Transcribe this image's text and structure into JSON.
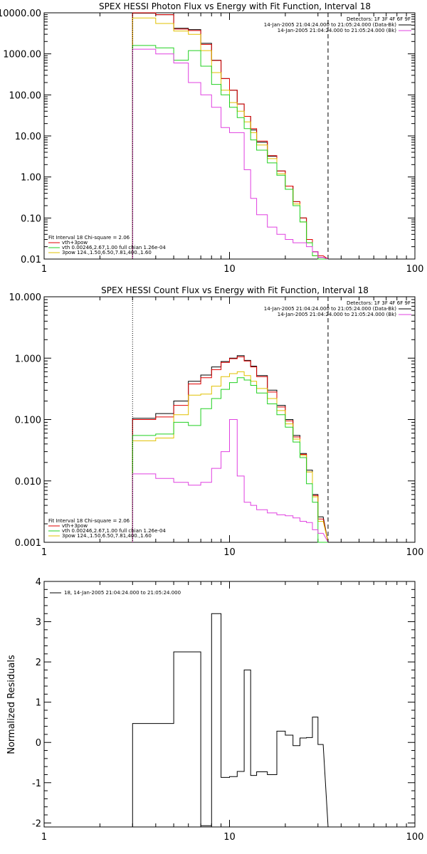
{
  "chart_data": [
    {
      "type": "line",
      "title": "SPEX HESSI Photon Flux vs Energy with Fit Function, Interval 18",
      "xscale": "log",
      "yscale": "log",
      "xlim": [
        1,
        100
      ],
      "ylim": [
        0.01,
        10000
      ],
      "xticks": [
        "1",
        "10",
        "100"
      ],
      "yticks": [
        "10000.00",
        "1000.00",
        "100.00",
        "10.00",
        "1.00",
        "0.10",
        "0.01"
      ],
      "ytick_values": [
        10000,
        1000,
        100,
        10,
        1,
        0.1,
        0.01
      ],
      "grid": false,
      "detector_note": "Detectors: 1F 3F 4F 6F 9F",
      "time_legend": [
        {
          "text": "14-Jan-2005 21:04:24.000 to 21:05:24.000 (Data-Bk)",
          "color": "#000000"
        },
        {
          "text": "14-Jan-2005 21:04:24.000 to 21:05:24.000 (Bk)",
          "color": "#e040e0"
        }
      ],
      "fit_info": "Fit Interval 18   Chi-square = 2.06",
      "fit_legend": [
        {
          "text": "vth+3pow",
          "color": "#e00000"
        },
        {
          "text": "vth 0.00246,2.67,1.00  full chian 1.26e-04",
          "color": "#20d020"
        },
        {
          "text": "3pow 124.,1.50,6.50,7.81,400.,1.60",
          "color": "#e0c000"
        }
      ],
      "vlines": [
        {
          "x": 3.0,
          "style": "dotted",
          "color": "#000000"
        },
        {
          "x": 34.0,
          "style": "dashed",
          "color": "#000000"
        }
      ],
      "edges": [
        3.0,
        4.0,
        5.0,
        6.0,
        7.0,
        8.0,
        9.0,
        10.0,
        11.0,
        12.0,
        13.0,
        14.0,
        16.0,
        18.0,
        20.0,
        22.0,
        24.0,
        26.0,
        28.0,
        30.0,
        32.0,
        34.0
      ],
      "series": [
        {
          "color": "#000000",
          "values": [
            9800,
            9000,
            4200,
            3900,
            1800,
            700,
            250,
            130,
            60,
            30,
            14,
            7,
            3.2,
            1.4,
            0.6,
            0.25,
            0.1,
            0.03,
            0.015,
            0.011
          ]
        },
        {
          "color": "#e00000",
          "values": [
            10000,
            9000,
            4000,
            3700,
            1700,
            690,
            250,
            130,
            60,
            30,
            15,
            7.5,
            3.3,
            1.4,
            0.6,
            0.25,
            0.1,
            0.03,
            0.015,
            0.012
          ]
        },
        {
          "color": "#e0c000",
          "values": [
            7500,
            5500,
            3600,
            3000,
            1200,
            350,
            130,
            65,
            40,
            22,
            12,
            6,
            2.8,
            1.2,
            0.5,
            0.22,
            0.08,
            0.025,
            0.012,
            0.009
          ]
        },
        {
          "color": "#20d020",
          "values": [
            1600,
            1400,
            700,
            1200,
            500,
            180,
            100,
            50,
            28,
            15,
            8,
            4.5,
            2.2,
            1.1,
            0.5,
            0.2,
            0.08,
            0.025,
            0.012,
            0.009
          ]
        },
        {
          "color": "#e040e0",
          "values": [
            1300,
            1000,
            600,
            200,
            100,
            50,
            16,
            12,
            12,
            1.5,
            0.3,
            0.12,
            0.06,
            0.04,
            0.03,
            0.025,
            0.025,
            0.02,
            0.015,
            0.011
          ]
        }
      ]
    },
    {
      "type": "line",
      "title": "SPEX HESSI Count Flux vs Energy with Fit Function, Interval 18",
      "xscale": "log",
      "yscale": "log",
      "xlim": [
        1,
        100
      ],
      "ylim": [
        0.001,
        10
      ],
      "xticks": [
        "1",
        "10",
        "100"
      ],
      "yticks": [
        "10.000",
        "1.000",
        "0.100",
        "0.010",
        "0.001"
      ],
      "ytick_values": [
        10,
        1,
        0.1,
        0.01,
        0.001
      ],
      "grid": false,
      "detector_note": "Detectors: 1F 3F 4F 6F 9F",
      "time_legend": [
        {
          "text": "14-Jan-2005 21:04:24.000 to 21:05:24.000 (Data-Bk)",
          "color": "#000000"
        },
        {
          "text": "14-Jan-2005 21:04:24.000 to 21:05:24.000 (Bk)",
          "color": "#e040e0"
        }
      ],
      "fit_info": "Fit Interval 18   Chi-square = 2.06",
      "fit_legend": [
        {
          "text": "vth+3pow",
          "color": "#e00000"
        },
        {
          "text": "vth 0.00246,2.67,1.00  full chian 1.26e-04",
          "color": "#20d020"
        },
        {
          "text": "3pow 124.,1.50,6.50,7.81,400.,1.60",
          "color": "#e0c000"
        }
      ],
      "vlines": [
        {
          "x": 3.0,
          "style": "dotted",
          "color": "#000000"
        },
        {
          "x": 34.0,
          "style": "dashed",
          "color": "#000000"
        }
      ],
      "edges": [
        3.0,
        4.0,
        5.0,
        6.0,
        7.0,
        8.0,
        9.0,
        10.0,
        11.0,
        12.0,
        13.0,
        14.0,
        16.0,
        18.0,
        20.0,
        22.0,
        24.0,
        26.0,
        28.0,
        30.0,
        32.0,
        34.0
      ],
      "series": [
        {
          "color": "#000000",
          "values": [
            0.105,
            0.125,
            0.2,
            0.42,
            0.53,
            0.72,
            0.88,
            1.0,
            1.1,
            0.92,
            0.74,
            0.52,
            0.3,
            0.17,
            0.1,
            0.055,
            0.028,
            0.015,
            0.006,
            0.0026
          ]
        },
        {
          "color": "#e00000",
          "values": [
            0.1,
            0.11,
            0.17,
            0.38,
            0.48,
            0.65,
            0.85,
            0.98,
            1.05,
            0.9,
            0.72,
            0.5,
            0.28,
            0.16,
            0.095,
            0.052,
            0.027,
            0.014,
            0.0058,
            0.0024
          ]
        },
        {
          "color": "#e0c000",
          "values": [
            0.045,
            0.05,
            0.12,
            0.25,
            0.26,
            0.35,
            0.5,
            0.56,
            0.6,
            0.52,
            0.42,
            0.32,
            0.22,
            0.14,
            0.085,
            0.048,
            0.026,
            0.014,
            0.0055,
            0.0022
          ]
        },
        {
          "color": "#20d020",
          "values": [
            0.055,
            0.058,
            0.09,
            0.08,
            0.15,
            0.22,
            0.31,
            0.4,
            0.48,
            0.44,
            0.36,
            0.27,
            0.18,
            0.12,
            0.075,
            0.043,
            0.024,
            0.009,
            0.0045,
            0.0009
          ]
        },
        {
          "color": "#e040e0",
          "values": [
            0.013,
            0.011,
            0.0095,
            0.0085,
            0.0095,
            0.016,
            0.03,
            0.1,
            0.012,
            0.0045,
            0.004,
            0.0034,
            0.003,
            0.0028,
            0.0027,
            0.0025,
            0.0022,
            0.0021,
            0.0016,
            0.0014
          ]
        }
      ]
    },
    {
      "type": "line",
      "title": "",
      "ylabel": "Normalized Residuals",
      "xscale": "log",
      "yscale": "linear",
      "xlim": [
        1,
        100
      ],
      "ylim": [
        -2.1,
        4.0
      ],
      "xticks": [
        "1",
        "10",
        "100"
      ],
      "yticks": [
        "4",
        "3",
        "2",
        "1",
        "0",
        "-1",
        "-2"
      ],
      "ytick_values": [
        4,
        3,
        2,
        1,
        0,
        -1,
        -2
      ],
      "grid": false,
      "legend": [
        {
          "text": "18, 14-Jan-2005 21:04:24.000 to 21:05:24.000",
          "color": "#000000"
        }
      ],
      "edges": [
        3.0,
        4.0,
        5.0,
        6.0,
        7.0,
        8.0,
        9.0,
        10.0,
        11.0,
        12.0,
        13.0,
        14.0,
        16.0,
        18.0,
        20.0,
        22.0,
        24.0,
        26.0,
        28.0,
        30.0,
        32.0,
        34.0
      ],
      "series": [
        {
          "color": "#000000",
          "values": [
            0.47,
            0.47,
            2.25,
            2.25,
            -2.07,
            3.2,
            -0.87,
            -0.85,
            -0.72,
            1.8,
            -0.82,
            -0.73,
            -0.8,
            0.28,
            0.18,
            -0.08,
            0.11,
            0.12,
            0.63,
            -0.05
          ]
        }
      ]
    }
  ]
}
